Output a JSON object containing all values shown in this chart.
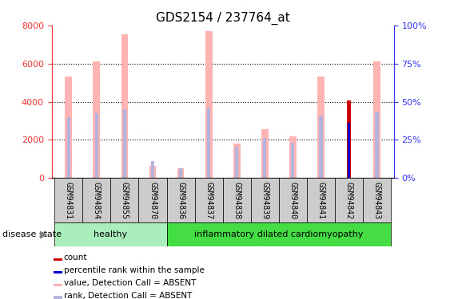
{
  "title": "GDS2154 / 237764_at",
  "samples": [
    "GSM94831",
    "GSM94854",
    "GSM94855",
    "GSM94870",
    "GSM94836",
    "GSM94837",
    "GSM94838",
    "GSM94839",
    "GSM94840",
    "GSM94841",
    "GSM94842",
    "GSM94843"
  ],
  "value_absent": [
    5300,
    6100,
    7550,
    650,
    500,
    7700,
    1800,
    2550,
    2200,
    5300,
    0,
    6100
  ],
  "rank_absent": [
    4000,
    4250,
    4500,
    1100,
    650,
    4600,
    2050,
    2600,
    2300,
    4100,
    0,
    4300
  ],
  "count_value": [
    0,
    0,
    0,
    0,
    0,
    0,
    0,
    0,
    0,
    0,
    4050,
    0
  ],
  "percentile_value": [
    0,
    0,
    0,
    0,
    0,
    0,
    0,
    0,
    0,
    0,
    3600,
    0
  ],
  "healthy_count": 4,
  "disease_count": 8,
  "healthy_label": "healthy",
  "disease_label": "inflammatory dilated cardiomyopathy",
  "disease_state_label": "disease state",
  "ylim_left": [
    0,
    8000
  ],
  "ylim_right": [
    0,
    100
  ],
  "yticks_left": [
    0,
    2000,
    4000,
    6000,
    8000
  ],
  "yticks_right": [
    0,
    25,
    50,
    75,
    100
  ],
  "color_value_absent": "#FFB3B3",
  "color_rank_absent": "#B3B3DD",
  "color_count": "#CC0000",
  "color_percentile": "#0000CC",
  "color_healthy_bg": "#AAEEBB",
  "color_disease_bg": "#44DD44",
  "color_left_axis": "#EE3333",
  "color_right_axis": "#3333EE",
  "color_xtick_bg": "#CCCCCC",
  "value_bar_width": 0.25,
  "rank_bar_width": 0.12,
  "count_bar_width": 0.12,
  "percentile_bar_width": 0.06,
  "legend_items": [
    "count",
    "percentile rank within the sample",
    "value, Detection Call = ABSENT",
    "rank, Detection Call = ABSENT"
  ]
}
